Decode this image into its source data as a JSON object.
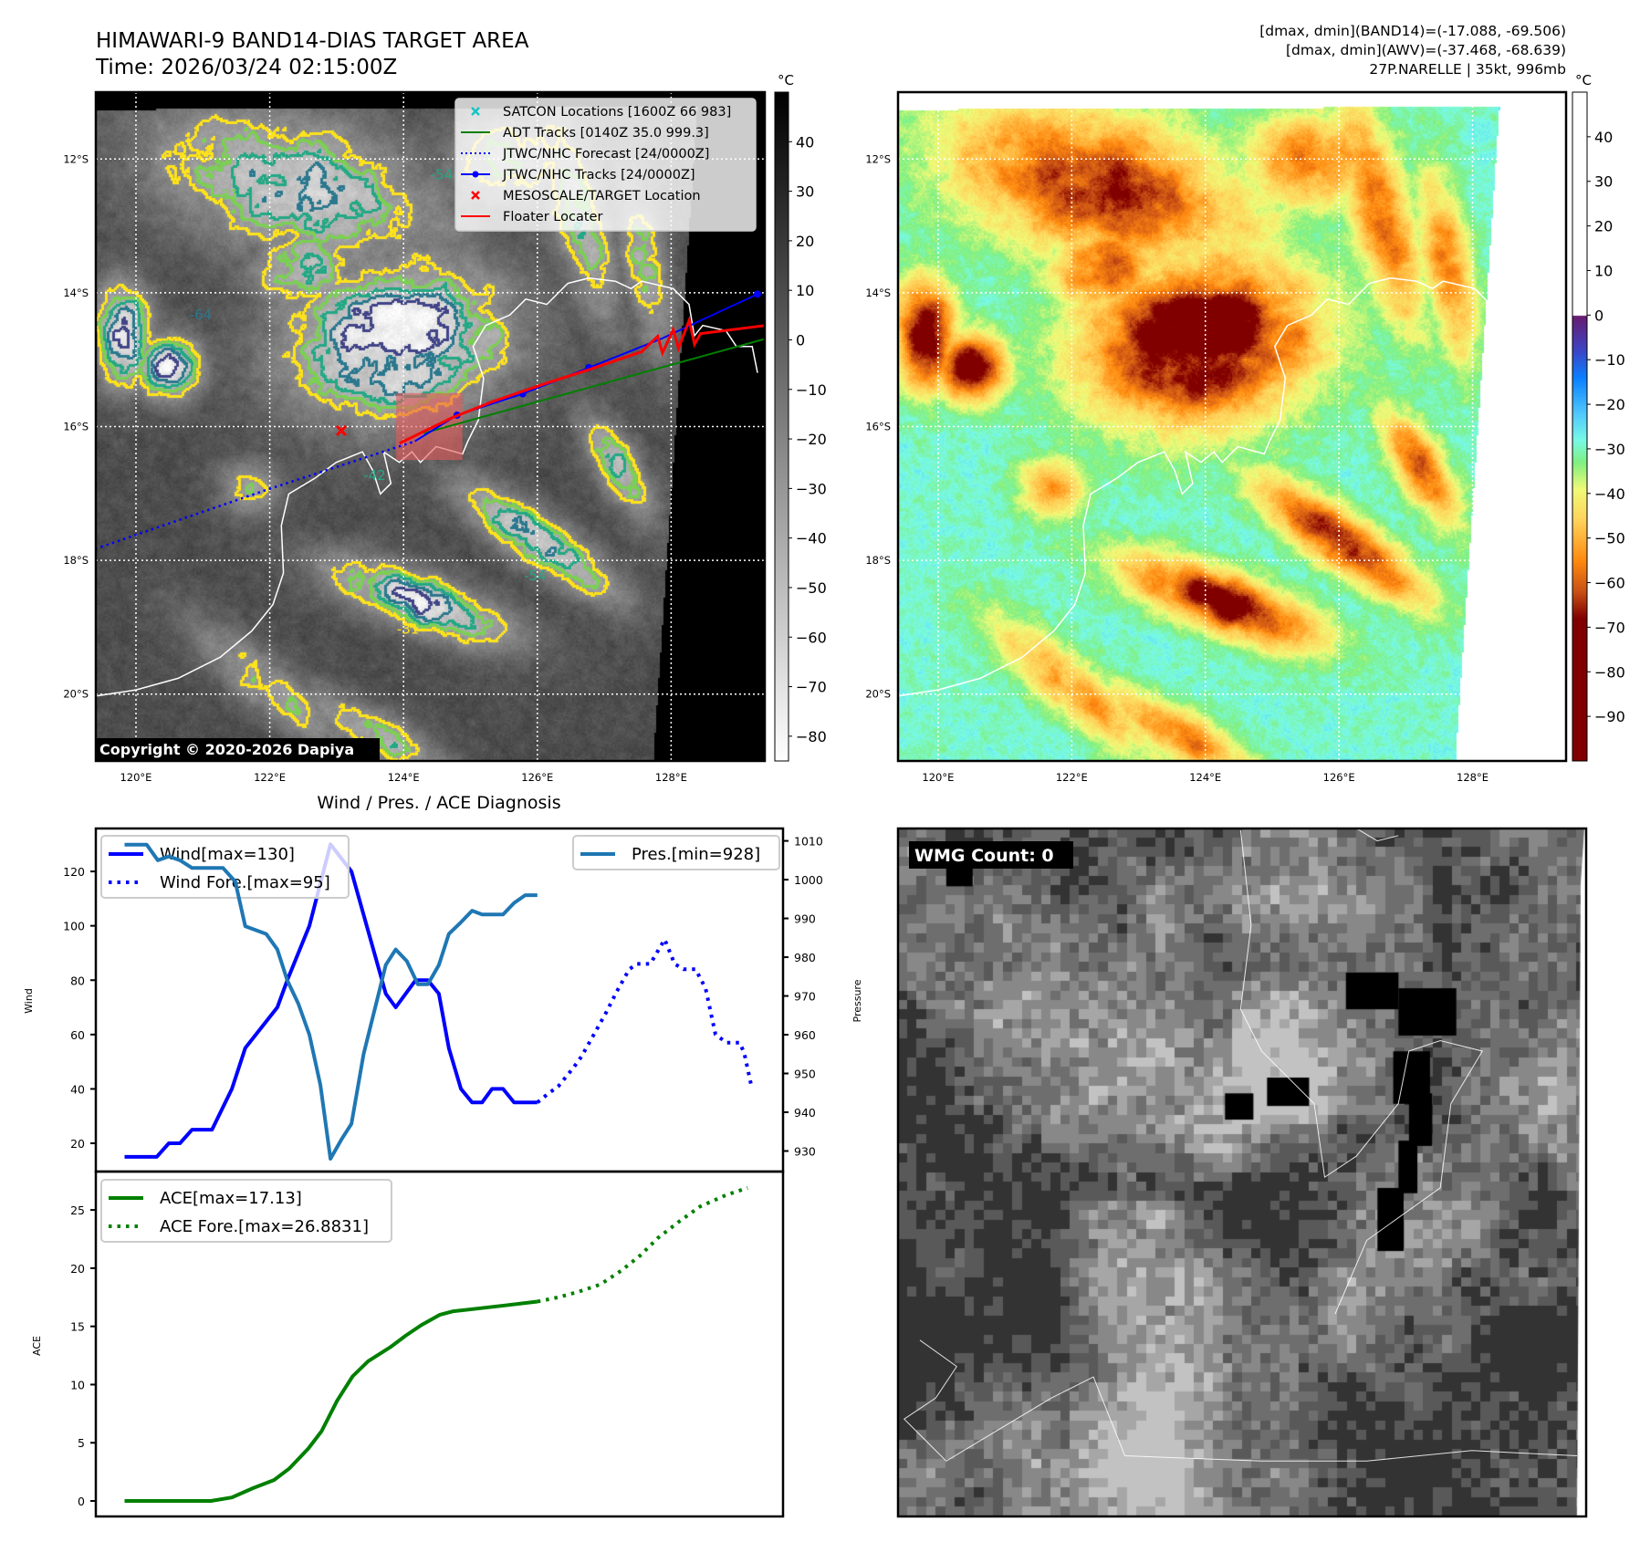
{
  "header": {
    "title": "HIMAWARI-9 BAND14-DIAS TARGET AREA",
    "time": "Time: 2026/03/24 02:15:00Z"
  },
  "stats": {
    "band14": "[dmax, dmin](BAND14)=(-17.088, -69.506)",
    "awv": "[dmax, dmin](AWV)=(-37.468, -68.639)",
    "storm": "27P.NARELLE | 35kt, 996mb"
  },
  "map": {
    "extent": {
      "lon": [
        119.4,
        129.4
      ],
      "lat": [
        -21,
        -11
      ]
    },
    "lat_ticks": [
      {
        "value": -12,
        "label": "12°S"
      },
      {
        "value": -14,
        "label": "14°S"
      },
      {
        "value": -16,
        "label": "16°S"
      },
      {
        "value": -18,
        "label": "18°S"
      },
      {
        "value": -20,
        "label": "20°S"
      }
    ],
    "lon_ticks": [
      {
        "value": 120,
        "label": "120°E"
      },
      {
        "value": 122,
        "label": "122°E"
      },
      {
        "value": 124,
        "label": "124°E"
      },
      {
        "value": 126,
        "label": "126°E"
      },
      {
        "value": 128,
        "label": "128°E"
      }
    ],
    "contour_labels": [
      "-31",
      "-42",
      "-54",
      "-64"
    ],
    "copyright": "Copyright © 2020-2026 Dapiya"
  },
  "colorbar_left": {
    "unit": "°C",
    "range": [
      -85,
      50
    ],
    "ticks": [
      40,
      30,
      20,
      10,
      0,
      -10,
      -20,
      -30,
      -40,
      -50,
      -60,
      -70,
      -80
    ]
  },
  "colorbar_right": {
    "unit": "°C",
    "range": [
      -100,
      50
    ],
    "ticks": [
      40,
      30,
      20,
      10,
      0,
      -10,
      -20,
      -30,
      -40,
      -50,
      -60,
      -70,
      -80,
      -90
    ]
  },
  "legend": [
    {
      "label": "SATCON Locations [1600Z 66 983]",
      "color": "#17c3c3",
      "style": "x"
    },
    {
      "label": "ADT Tracks [0140Z 35.0 999.3]",
      "color": "#008000",
      "style": "line"
    },
    {
      "label": "JTWC/NHC Forecast [24/0000Z]",
      "color": "#0000ff",
      "style": "dotted"
    },
    {
      "label": "JTWC/NHC Tracks [24/0000Z]",
      "color": "#0000ff",
      "style": "line-dot"
    },
    {
      "label": "MESOSCALE/TARGET Location",
      "color": "#ff0000",
      "style": "x"
    },
    {
      "label": "Floater Locater",
      "color": "#ff0000",
      "style": "line"
    }
  ],
  "tracks": {
    "jtwc_forecast": [
      [
        119.39,
        -17.83
      ],
      [
        121.97,
        -16.94
      ],
      [
        124.17,
        -16.22
      ]
    ],
    "jtwc_track": [
      [
        124.17,
        -16.22
      ],
      [
        124.8,
        -15.83
      ],
      [
        125.78,
        -15.51
      ],
      [
        126.77,
        -15.12
      ],
      [
        127.87,
        -14.68
      ],
      [
        129.29,
        -14.02
      ]
    ],
    "jtwc_points": [
      [
        124.8,
        -15.83
      ],
      [
        125.78,
        -15.51
      ],
      [
        126.77,
        -15.12
      ],
      [
        129.29,
        -14.02
      ]
    ],
    "adt": [
      [
        124.3,
        -16.1
      ],
      [
        129.4,
        -14.69
      ]
    ],
    "floater": [
      [
        123.94,
        -16.25
      ],
      [
        124.72,
        -15.87
      ],
      [
        125.35,
        -15.62
      ],
      [
        126.14,
        -15.35
      ],
      [
        126.77,
        -15.15
      ],
      [
        127.56,
        -14.88
      ],
      [
        127.8,
        -14.65
      ],
      [
        127.87,
        -14.9
      ],
      [
        128.03,
        -14.55
      ],
      [
        128.11,
        -14.83
      ],
      [
        128.27,
        -14.41
      ],
      [
        128.35,
        -14.77
      ],
      [
        128.44,
        -14.61
      ],
      [
        129.4,
        -14.49
      ]
    ],
    "target": [
      123.07,
      -16.06
    ],
    "target_box": {
      "lon": [
        123.89,
        124.88
      ],
      "lat": [
        -16.5,
        -15.5
      ]
    }
  },
  "wmg": {
    "label": "WMG Count: 0",
    "count": 0
  },
  "chart_title": "Wind / Pres. / ACE Diagnosis",
  "chart_data": [
    {
      "type": "line",
      "title": "Wind / Pres. / ACE Diagnosis",
      "xlabel": "",
      "ylabel": "Wind",
      "y2label": "Pressure",
      "xlim": [
        -2.6,
        59.5
      ],
      "ylim": [
        9.6,
        135.8
      ],
      "y2lim": [
        924.7,
        1013.2
      ],
      "yticks": [
        20,
        40,
        60,
        80,
        100,
        120
      ],
      "y2ticks": [
        930,
        940,
        950,
        960,
        970,
        980,
        990,
        1000,
        1010
      ],
      "legend_left": [
        "Wind[max=130]",
        "Wind Fore.[max=95]"
      ],
      "legend_right": [
        "Pres.[min=928]"
      ],
      "series": [
        {
          "name": "Wind[max=130]",
          "axis": "left",
          "color": "#0000ff",
          "style": "solid",
          "points": [
            [
              0,
              15
            ],
            [
              2.9,
              15
            ],
            [
              4,
              20
            ],
            [
              5,
              20
            ],
            [
              6.1,
              25
            ],
            [
              7.9,
              25
            ],
            [
              9.7,
              40
            ],
            [
              10.9,
              55
            ],
            [
              13.8,
              70
            ],
            [
              14.7,
              80
            ],
            [
              16.7,
              100
            ],
            [
              18.6,
              130
            ],
            [
              20.5,
              120
            ],
            [
              23.6,
              75
            ],
            [
              24.5,
              70
            ],
            [
              26.3,
              80
            ],
            [
              27.4,
              80
            ],
            [
              28.4,
              75
            ],
            [
              29.3,
              55
            ],
            [
              30.4,
              40
            ],
            [
              31.4,
              35
            ],
            [
              32.3,
              35
            ],
            [
              33.2,
              40
            ],
            [
              34.2,
              40
            ],
            [
              35.2,
              35
            ],
            [
              37.3,
              35
            ]
          ]
        },
        {
          "name": "Wind Fore.[max=95]",
          "axis": "left",
          "color": "#0000ff",
          "style": "dotted",
          "points": [
            [
              37.3,
              35
            ],
            [
              38.2,
              38
            ],
            [
              39.2,
              41
            ],
            [
              40.6,
              48
            ],
            [
              41.3,
              52
            ],
            [
              42.4,
              60
            ],
            [
              43.5,
              68
            ],
            [
              44.5,
              76
            ],
            [
              45.6,
              84
            ],
            [
              46.3,
              86
            ],
            [
              47.5,
              86
            ],
            [
              48.8,
              95
            ],
            [
              49.7,
              86
            ],
            [
              50.5,
              84
            ],
            [
              51.6,
              84
            ],
            [
              52.5,
              77
            ],
            [
              53.4,
              60
            ],
            [
              54.4,
              57
            ],
            [
              55.6,
              57
            ],
            [
              56,
              53
            ],
            [
              56.7,
              40
            ]
          ]
        },
        {
          "name": "Pres.[min=928]",
          "axis": "right",
          "color": "#1f77b4",
          "style": "solid",
          "points": [
            [
              0,
              1009
            ],
            [
              2,
              1009
            ],
            [
              3,
              1005
            ],
            [
              4,
              1006
            ],
            [
              5,
              1005
            ],
            [
              6.1,
              1003
            ],
            [
              8.9,
              1003
            ],
            [
              10,
              999.5
            ],
            [
              10.9,
              988
            ],
            [
              12.8,
              986
            ],
            [
              13.8,
              982
            ],
            [
              14.7,
              974
            ],
            [
              15.7,
              968
            ],
            [
              16.7,
              960
            ],
            [
              17.7,
              947
            ],
            [
              18.6,
              928
            ],
            [
              19.6,
              933
            ],
            [
              20.5,
              937
            ],
            [
              21.6,
              955
            ],
            [
              23.6,
              978
            ],
            [
              24.5,
              982
            ],
            [
              25.5,
              979
            ],
            [
              26.5,
              973
            ],
            [
              27.4,
              973
            ],
            [
              28.4,
              978
            ],
            [
              29.3,
              986
            ],
            [
              30.4,
              989
            ],
            [
              31.4,
              992
            ],
            [
              32.3,
              991
            ],
            [
              34.2,
              991
            ],
            [
              35.2,
              994
            ],
            [
              36.2,
              996
            ],
            [
              37.3,
              996
            ]
          ]
        }
      ]
    },
    {
      "type": "line",
      "title": "",
      "xlabel": "",
      "ylabel": "ACE",
      "xlim": [
        -2.6,
        59.5
      ],
      "ylim": [
        -1.33,
        28.3
      ],
      "yticks": [
        0,
        5,
        10,
        15,
        20,
        25
      ],
      "legend": [
        "ACE[max=17.13]",
        "ACE Fore.[max=26.8831]"
      ],
      "series": [
        {
          "name": "ACE[max=17.13]",
          "color": "#008000",
          "style": "solid",
          "points": [
            [
              0,
              0
            ],
            [
              7.8,
              0
            ],
            [
              9.7,
              0.3
            ],
            [
              11.6,
              1.1
            ],
            [
              13.5,
              1.8
            ],
            [
              14.9,
              2.8
            ],
            [
              16.6,
              4.5
            ],
            [
              17.8,
              6
            ],
            [
              19.2,
              8.6
            ],
            [
              20.6,
              10.7
            ],
            [
              22,
              12
            ],
            [
              24,
              13.2
            ],
            [
              25.4,
              14.2
            ],
            [
              26.8,
              15.1
            ],
            [
              28.5,
              16
            ],
            [
              29.7,
              16.3
            ],
            [
              32.5,
              16.6
            ],
            [
              34.4,
              16.8
            ],
            [
              37.3,
              17.13
            ]
          ]
        },
        {
          "name": "ACE Fore.[max=26.8831]",
          "color": "#008000",
          "style": "dotted",
          "points": [
            [
              37.3,
              17.13
            ],
            [
              39.2,
              17.5
            ],
            [
              41.1,
              18
            ],
            [
              43,
              18.6
            ],
            [
              44.9,
              19.8
            ],
            [
              46.6,
              21.1
            ],
            [
              48.2,
              22.6
            ],
            [
              50.1,
              24
            ],
            [
              52,
              25.3
            ],
            [
              54.4,
              26.3
            ],
            [
              56.3,
              26.9
            ]
          ]
        }
      ]
    }
  ]
}
